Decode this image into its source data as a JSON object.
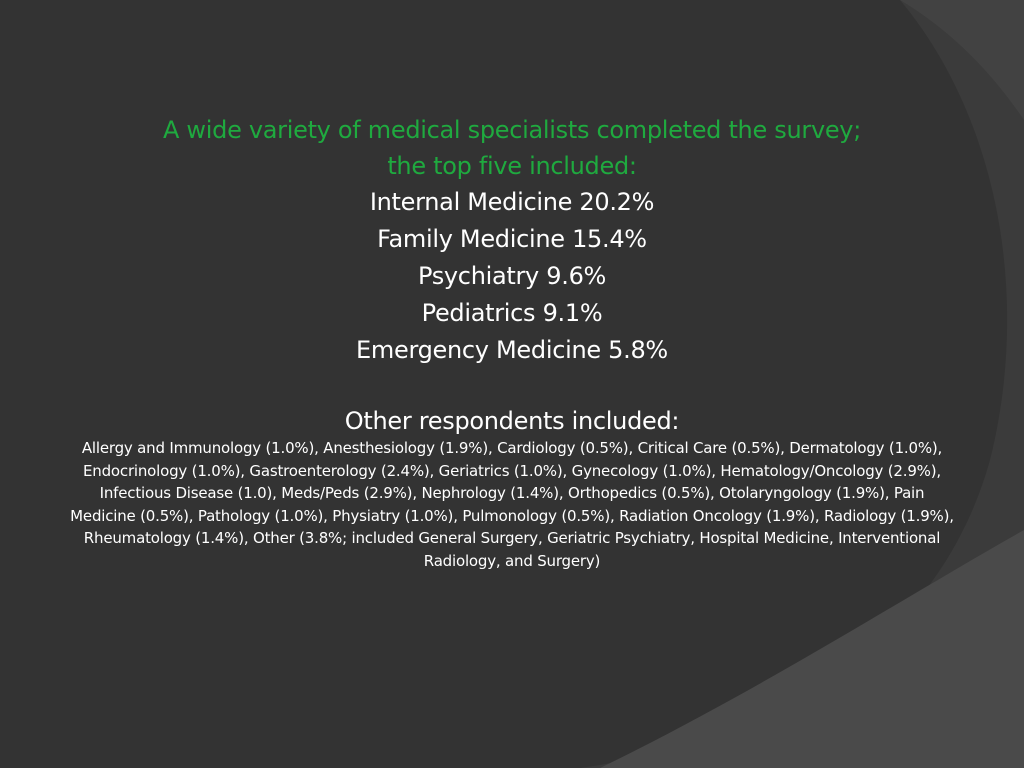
{
  "slide": {
    "headline_line1": "A wide variety of medical specialists completed the survey;",
    "headline_line2": "the top five included:",
    "top_five": [
      "Internal Medicine 20.2%",
      "Family Medicine 15.4%",
      "Psychiatry 9.6%",
      "Pediatrics 9.1%",
      "Emergency Medicine 5.8%"
    ],
    "other_heading": "Other respondents included:",
    "other_text": "Allergy and Immunology (1.0%), Anesthesiology (1.9%), Cardiology (0.5%), Critical Care (0.5%), Dermatology (1.0%), Endocrinology (1.0%), Gastroenterology (2.4%), Geriatrics (1.0%), Gynecology (1.0%), Hematology/Oncology (2.9%), Infectious Disease (1.0), Meds/Peds (2.9%), Nephrology (1.4%), Orthopedics (0.5%), Otolaryngology (1.9%), Pain Medicine (0.5%), Pathology (1.0%), Physiatry (1.0%), Pulmonology (0.5%), Radiation Oncology (1.9%), Radiology (1.9%), Rheumatology (1.4%), Other (3.8%; included General Surgery, Geriatric Psychiatry, Hospital Medicine, Interventional Radiology, and Surgery)"
  },
  "theme": {
    "background": "#3b3b3b",
    "accent_green": "#1faa3f",
    "text": "#ffffff"
  }
}
